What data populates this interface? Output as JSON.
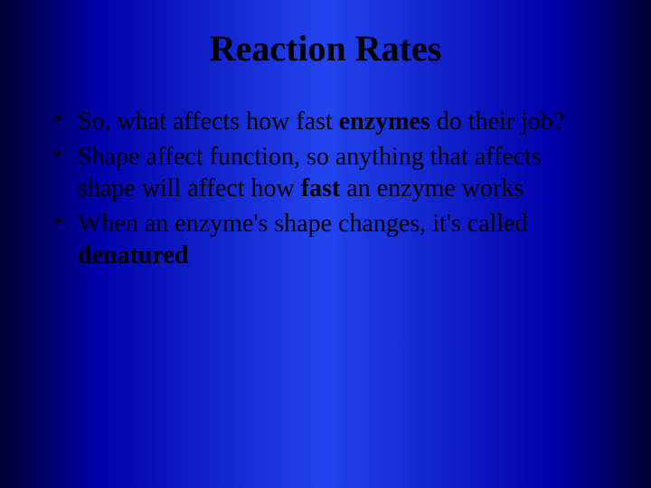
{
  "slide": {
    "title": "Reaction Rates",
    "bullets": [
      {
        "pre": "So, what affects how fast ",
        "bold1": "enzymes",
        "post": " do their job?"
      },
      {
        "pre": "Shape affect function, so anything that affects shape will affect how ",
        "bold1": "fast",
        "post": " an enzyme works"
      },
      {
        "pre": "When an enzyme's shape changes, it's called ",
        "bold1": "denatured",
        "post": ""
      }
    ],
    "background_gradient": [
      "#000033",
      "#0000aa",
      "#2244ee",
      "#0000aa",
      "#000033"
    ],
    "title_color": "#000000",
    "text_color": "#000000",
    "title_fontsize": 40,
    "body_fontsize": 28,
    "font_family": "Georgia, Times New Roman, serif"
  }
}
